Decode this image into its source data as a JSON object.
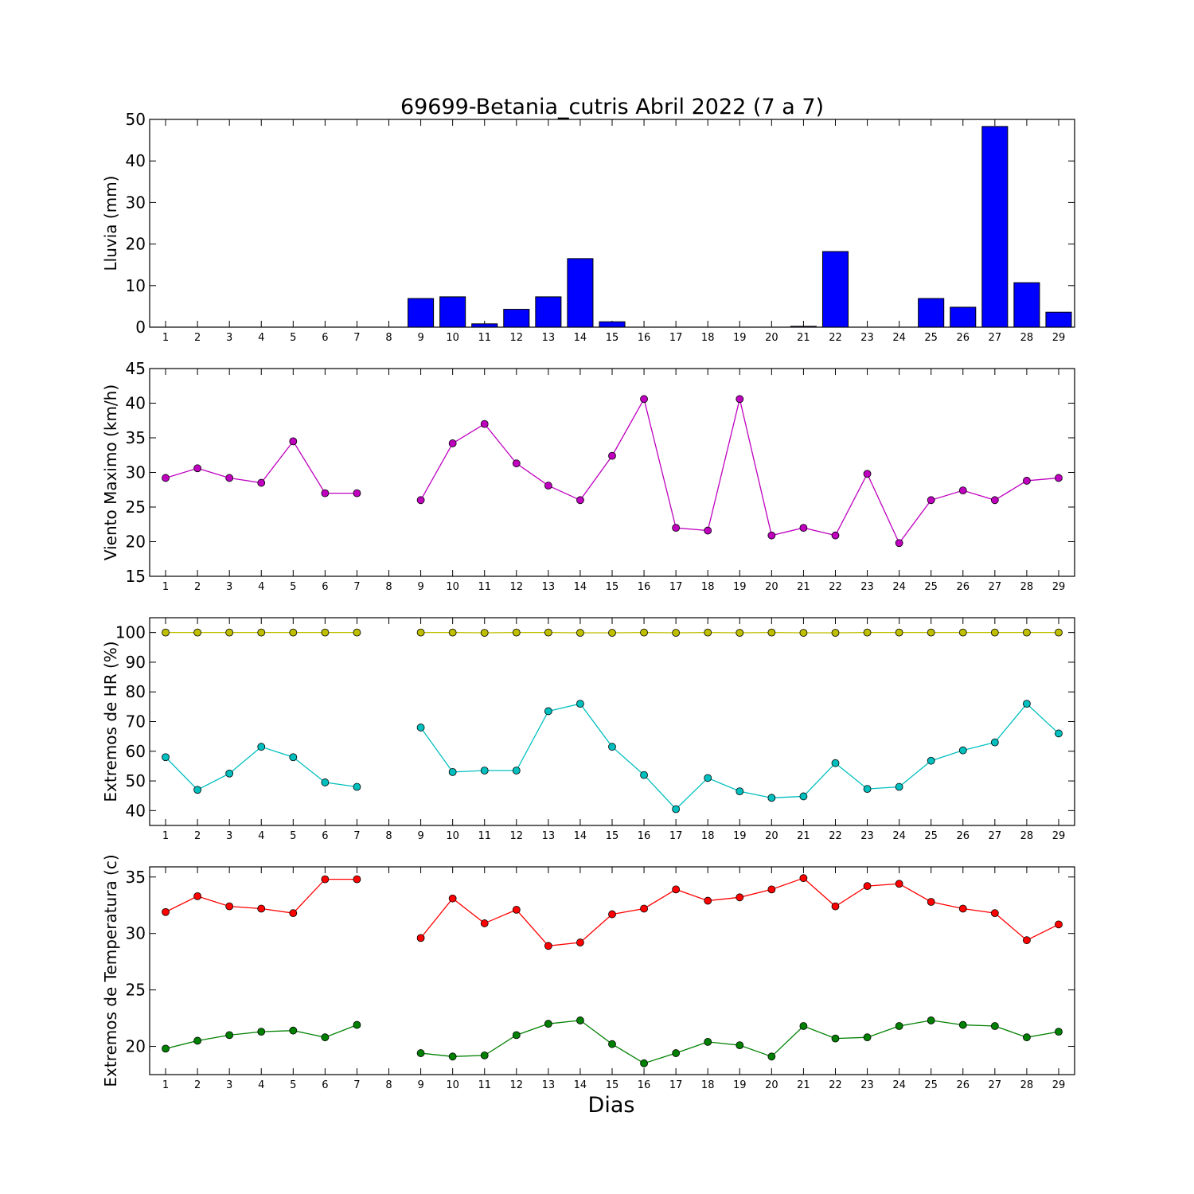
{
  "title": "69699-Betania_cutris Abril 2022  (7 a 7)",
  "xlabel": "Dias",
  "chart_data": [
    {
      "type": "bar",
      "ylabel": "Lluvia (mm)",
      "ylim": [
        0,
        50
      ],
      "yticks": [
        0,
        10,
        20,
        30,
        40,
        50
      ],
      "xticks": [
        1,
        2,
        3,
        4,
        5,
        6,
        7,
        8,
        9,
        10,
        11,
        12,
        13,
        14,
        15,
        16,
        17,
        18,
        19,
        20,
        21,
        22,
        23,
        24,
        25,
        26,
        27,
        28,
        29
      ],
      "color": "#0000ff",
      "series": [
        {
          "x": [
            1,
            2,
            3,
            4,
            5,
            6,
            7,
            8,
            9,
            10,
            11,
            12,
            13,
            14,
            15,
            16,
            17,
            18,
            19,
            20,
            21,
            22,
            23,
            24,
            25,
            26,
            27,
            28,
            29
          ],
          "values": [
            0,
            0,
            0,
            0,
            0,
            0,
            0,
            null,
            6.9,
            7.3,
            0.8,
            4.3,
            7.3,
            16.5,
            1.3,
            0,
            0,
            0,
            0,
            0,
            0.2,
            18.2,
            0,
            0,
            6.9,
            4.8,
            48.3,
            10.7,
            3.6
          ]
        }
      ]
    },
    {
      "type": "line",
      "ylabel": "Viento Maximo (km/h)",
      "ylim": [
        15,
        45
      ],
      "yticks": [
        15,
        20,
        25,
        30,
        35,
        40,
        45
      ],
      "xticks": [
        1,
        2,
        3,
        4,
        5,
        6,
        7,
        8,
        9,
        10,
        11,
        12,
        13,
        14,
        15,
        16,
        17,
        18,
        19,
        20,
        21,
        22,
        23,
        24,
        25,
        26,
        27,
        28,
        29
      ],
      "series": [
        {
          "color": "#bf00bf",
          "x": [
            1,
            2,
            3,
            4,
            5,
            6,
            7,
            8,
            9,
            10,
            11,
            12,
            13,
            14,
            15,
            16,
            17,
            18,
            19,
            20,
            21,
            22,
            23,
            24,
            25,
            26,
            27,
            28,
            29
          ],
          "values": [
            29.2,
            30.6,
            29.2,
            28.5,
            34.5,
            27.0,
            27.0,
            null,
            26.0,
            34.2,
            37.0,
            31.3,
            28.1,
            26.0,
            32.4,
            40.6,
            22.0,
            21.6,
            40.6,
            20.9,
            22.0,
            20.9,
            29.8,
            19.8,
            26.0,
            27.4,
            26.0,
            28.8,
            29.2
          ]
        }
      ]
    },
    {
      "type": "line",
      "ylabel": "Extremos de HR (%)",
      "ylim": [
        35,
        105
      ],
      "yticks": [
        40,
        50,
        60,
        70,
        80,
        90,
        100
      ],
      "xticks": [
        1,
        2,
        3,
        4,
        5,
        6,
        7,
        8,
        9,
        10,
        11,
        12,
        13,
        14,
        15,
        16,
        17,
        18,
        19,
        20,
        21,
        22,
        23,
        24,
        25,
        26,
        27,
        28,
        29
      ],
      "series": [
        {
          "color": "#bfbf00",
          "x": [
            1,
            2,
            3,
            4,
            5,
            6,
            7,
            8,
            9,
            10,
            11,
            12,
            13,
            14,
            15,
            16,
            17,
            18,
            19,
            20,
            21,
            22,
            23,
            24,
            25,
            26,
            27,
            28,
            29
          ],
          "values": [
            100,
            100,
            100,
            100,
            100,
            100,
            100,
            null,
            100,
            100,
            99.9,
            100,
            100,
            99.9,
            99.9,
            100,
            99.9,
            100,
            99.9,
            100,
            99.9,
            99.9,
            100,
            100,
            100,
            100,
            100,
            100,
            100
          ]
        },
        {
          "color": "#00bfbf",
          "x": [
            1,
            2,
            3,
            4,
            5,
            6,
            7,
            8,
            9,
            10,
            11,
            12,
            13,
            14,
            15,
            16,
            17,
            18,
            19,
            20,
            21,
            22,
            23,
            24,
            25,
            26,
            27,
            28,
            29
          ],
          "values": [
            58,
            47,
            52.5,
            61.5,
            58,
            49.5,
            48,
            null,
            68,
            53,
            53.5,
            53.5,
            73.5,
            76,
            61.5,
            52,
            40.5,
            51,
            46.5,
            44.3,
            44.8,
            56,
            47.3,
            48,
            56.8,
            60.3,
            63,
            76,
            66
          ]
        }
      ]
    },
    {
      "type": "line",
      "ylabel": "Extremos de Temperatura (c)",
      "ylim": [
        17.5,
        35.9
      ],
      "yticks": [
        20,
        25,
        30,
        35
      ],
      "xticks": [
        1,
        2,
        3,
        4,
        5,
        6,
        7,
        8,
        9,
        10,
        11,
        12,
        13,
        14,
        15,
        16,
        17,
        18,
        19,
        20,
        21,
        22,
        23,
        24,
        25,
        26,
        27,
        28,
        29
      ],
      "series": [
        {
          "color": "#ff0000",
          "x": [
            1,
            2,
            3,
            4,
            5,
            6,
            7,
            8,
            9,
            10,
            11,
            12,
            13,
            14,
            15,
            16,
            17,
            18,
            19,
            20,
            21,
            22,
            23,
            24,
            25,
            26,
            27,
            28,
            29
          ],
          "values": [
            31.9,
            33.3,
            32.4,
            32.2,
            31.8,
            34.8,
            34.8,
            null,
            29.6,
            33.1,
            30.9,
            32.1,
            28.9,
            29.2,
            31.7,
            32.2,
            33.9,
            32.9,
            33.2,
            33.9,
            34.9,
            32.4,
            34.2,
            34.4,
            32.8,
            32.2,
            31.8,
            29.4,
            30.8
          ]
        },
        {
          "color": "#008000",
          "x": [
            1,
            2,
            3,
            4,
            5,
            6,
            7,
            8,
            9,
            10,
            11,
            12,
            13,
            14,
            15,
            16,
            17,
            18,
            19,
            20,
            21,
            22,
            23,
            24,
            25,
            26,
            27,
            28,
            29
          ],
          "values": [
            19.8,
            20.5,
            21.0,
            21.3,
            21.4,
            20.8,
            21.9,
            null,
            19.4,
            19.1,
            19.2,
            21.0,
            22.0,
            22.3,
            20.2,
            18.5,
            19.4,
            20.4,
            20.1,
            19.1,
            21.8,
            20.7,
            20.8,
            21.8,
            22.3,
            21.9,
            21.8,
            20.8,
            21.3
          ]
        }
      ]
    }
  ]
}
